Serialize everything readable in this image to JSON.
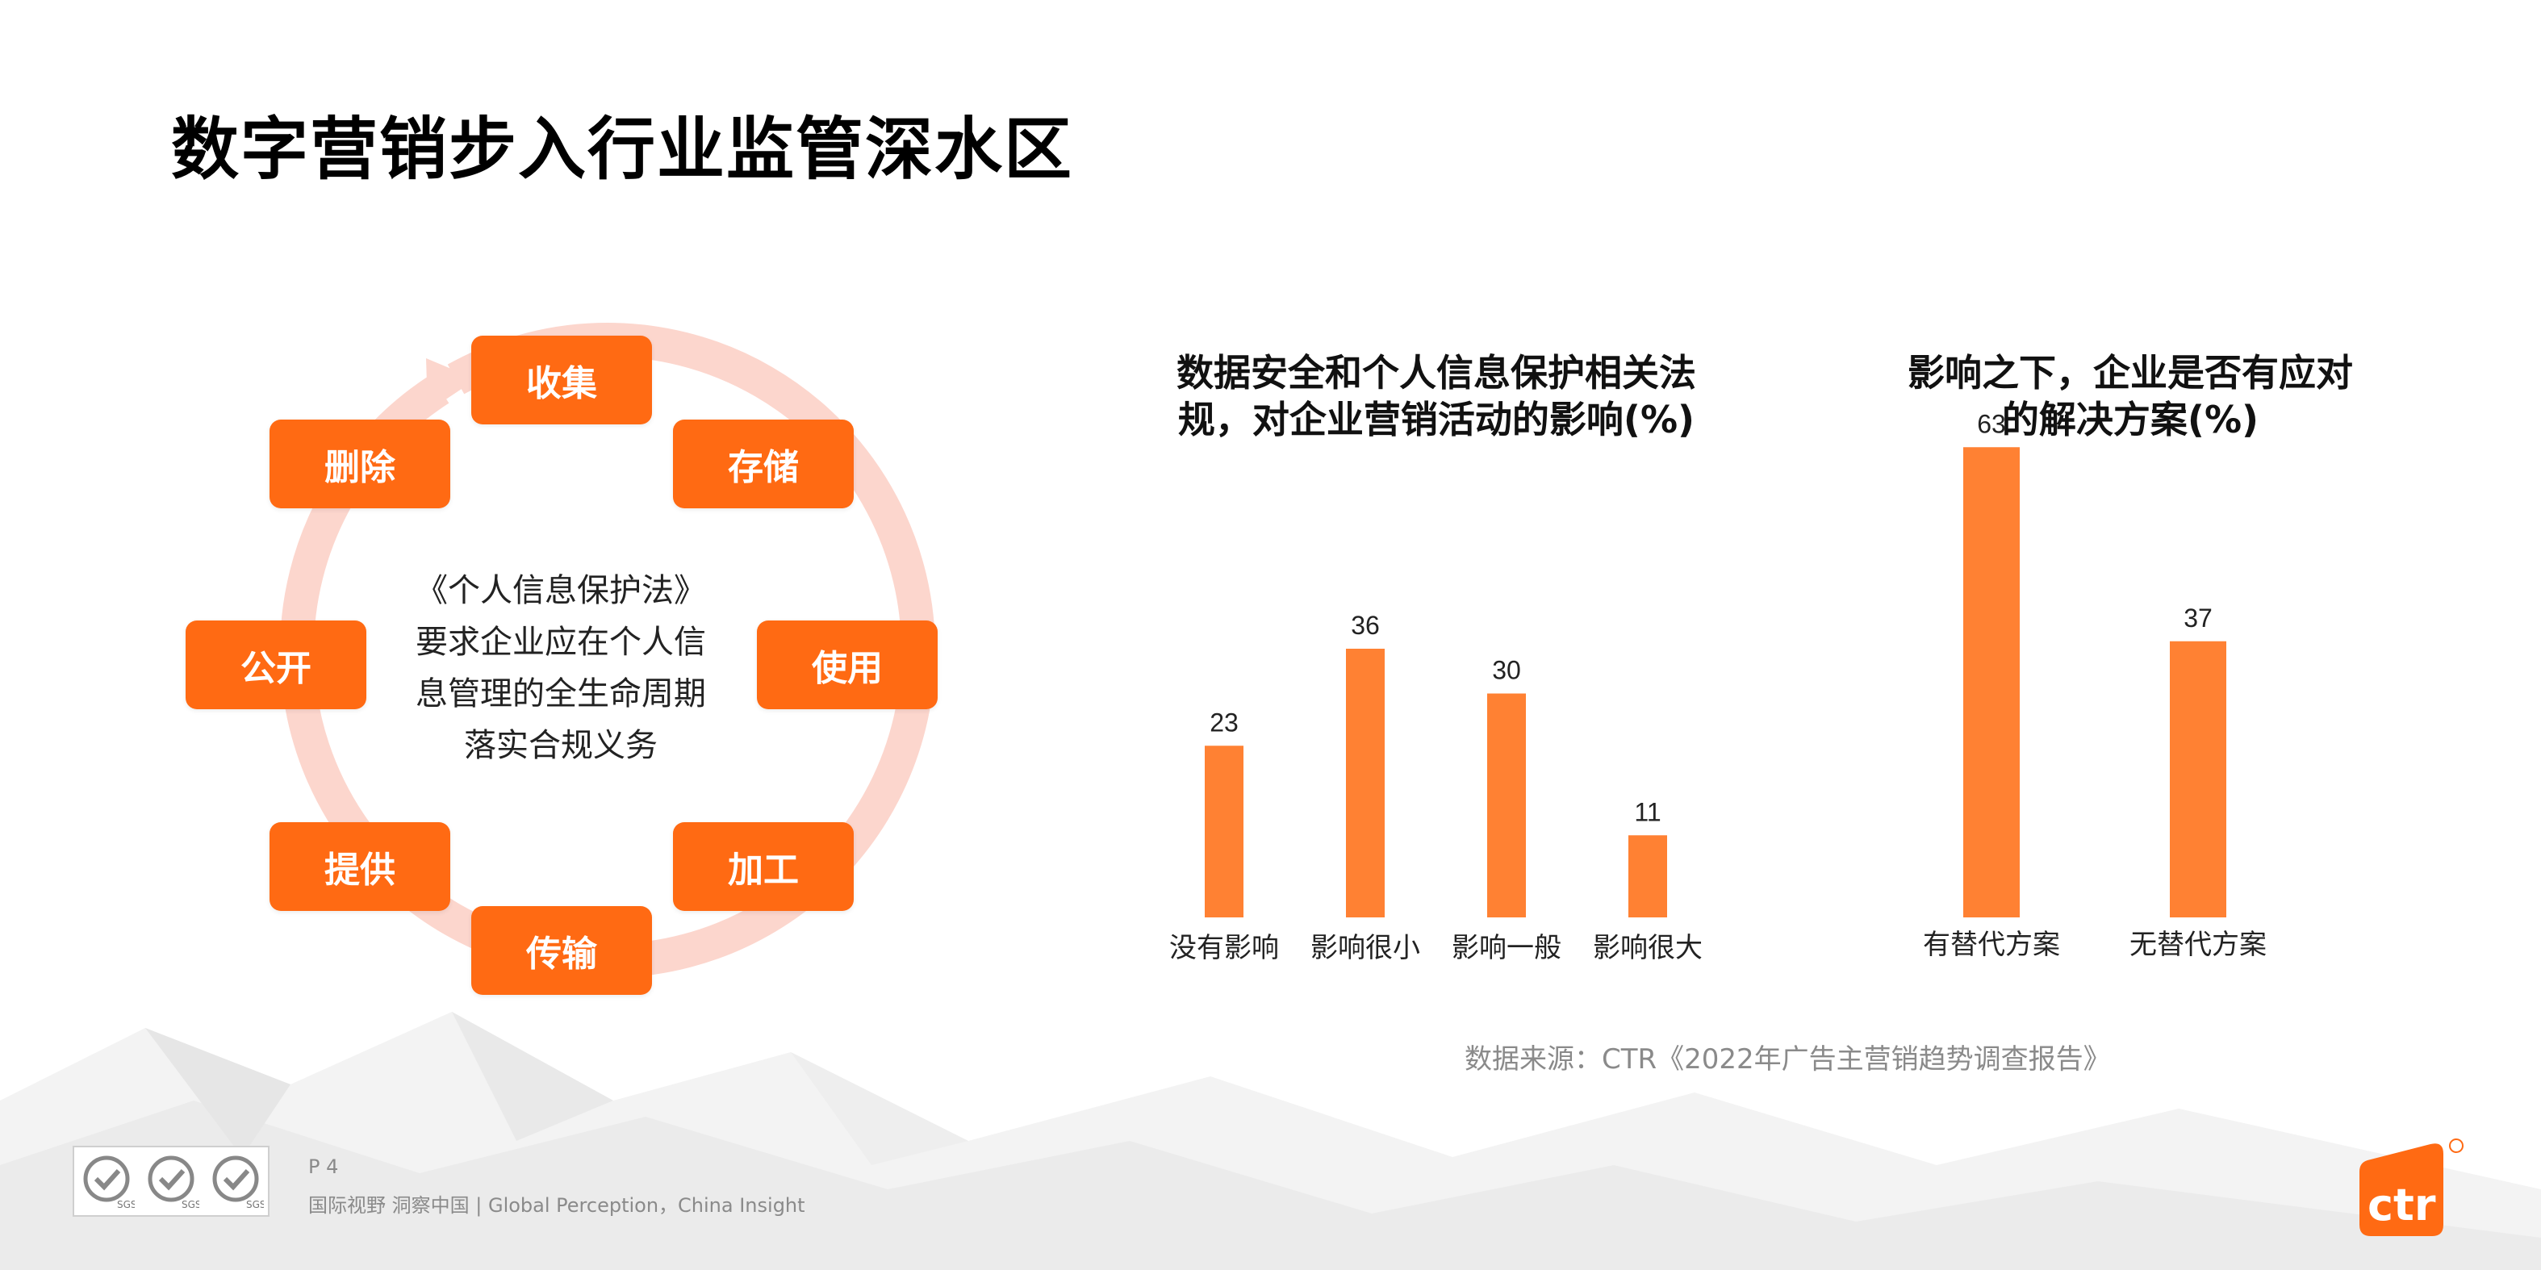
{
  "page": {
    "title": "数字营销步入行业监管深水区",
    "source": "数据来源：CTR《2022年广告主营销趋势调查报告》",
    "page_number": "P 4",
    "footer": "国际视野  洞察中国 |  Global Perception，China Insight",
    "logo_text": "ctr",
    "seal_text": "SGS"
  },
  "cycle": {
    "nodes": [
      "收集",
      "存储",
      "使用",
      "加工",
      "传输",
      "提供",
      "公开",
      "删除"
    ],
    "center_lines": [
      "《个人信息保护法》",
      "要求企业应在个人信",
      "息管理的全生命周期",
      "落实合规义务"
    ],
    "colors": {
      "node": "#ff6a13",
      "ring": "#fcd6cd"
    }
  },
  "chart_data": [
    {
      "type": "bar",
      "title": "数据安全和个人信息保护相关法规，对企业营销活动的影响(%)",
      "title_lines": [
        "数据安全和个人信息保护相关法",
        "规，对企业营销活动的影响(%)"
      ],
      "categories": [
        "没有影响",
        "影响很小",
        "影响一般",
        "影响很大"
      ],
      "values": [
        23,
        36,
        30,
        11
      ],
      "xlabel": "",
      "ylabel": "",
      "ylim": [
        0,
        70
      ],
      "grid": false,
      "color": "#ff8133"
    },
    {
      "type": "bar",
      "title": "影响之下，企业是否有应对的解决方案(%)",
      "title_lines": [
        "影响之下，企业是否有应对",
        "的解决方案(%)"
      ],
      "categories": [
        "有替代方案",
        "无替代方案"
      ],
      "values": [
        63,
        37
      ],
      "xlabel": "",
      "ylabel": "",
      "ylim": [
        0,
        70
      ],
      "grid": false,
      "color": "#ff8133"
    }
  ]
}
